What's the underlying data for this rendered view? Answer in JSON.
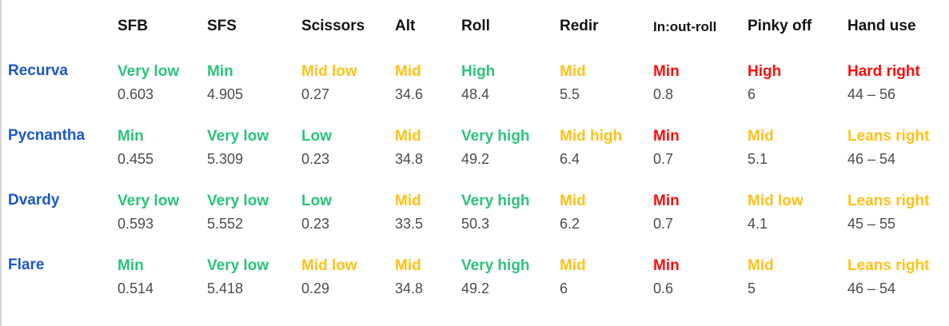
{
  "page": {
    "background": "#ffffff",
    "left_border_color": "#d5d5d5"
  },
  "table": {
    "corner_label": "",
    "columns": [
      {
        "key": "sfb",
        "label": "SFB"
      },
      {
        "key": "sfs",
        "label": "SFS"
      },
      {
        "key": "scissors",
        "label": "Scissors"
      },
      {
        "key": "alt",
        "label": "Alt"
      },
      {
        "key": "roll",
        "label": "Roll"
      },
      {
        "key": "redir",
        "label": "Redir"
      },
      {
        "key": "in-out-roll",
        "label": "In:out-roll"
      },
      {
        "key": "pinky-off",
        "label": "Pinky off"
      },
      {
        "key": "hand-use",
        "label": "Hand use"
      }
    ],
    "rows": [
      {
        "key": "recurva",
        "name": "Recurva",
        "cells": [
          {
            "rating": "Very low",
            "color": "green",
            "value": "0.603"
          },
          {
            "rating": "Min",
            "color": "green",
            "value": "4.905"
          },
          {
            "rating": "Mid low",
            "color": "yellow",
            "value": "0.27"
          },
          {
            "rating": "Mid",
            "color": "yellow",
            "value": "34.6"
          },
          {
            "rating": "High",
            "color": "green",
            "value": "48.4"
          },
          {
            "rating": "Mid",
            "color": "yellow",
            "value": "5.5"
          },
          {
            "rating": "Min",
            "color": "red",
            "value": "0.8"
          },
          {
            "rating": "High",
            "color": "red",
            "value": "6"
          },
          {
            "rating": "Hard right",
            "color": "red",
            "value": "44 – 56"
          }
        ]
      },
      {
        "key": "pycnantha",
        "name": "Pycnantha",
        "cells": [
          {
            "rating": "Min",
            "color": "green",
            "value": "0.455"
          },
          {
            "rating": "Very low",
            "color": "green",
            "value": "5.309"
          },
          {
            "rating": "Low",
            "color": "green",
            "value": "0.23"
          },
          {
            "rating": "Mid",
            "color": "yellow",
            "value": "34.8"
          },
          {
            "rating": "Very high",
            "color": "green",
            "value": "49.2"
          },
          {
            "rating": "Mid high",
            "color": "yellow",
            "value": "6.4"
          },
          {
            "rating": "Min",
            "color": "red",
            "value": "0.7"
          },
          {
            "rating": "Mid",
            "color": "yellow",
            "value": "5.1"
          },
          {
            "rating": "Leans right",
            "color": "yellow",
            "value": "46 – 54"
          }
        ]
      },
      {
        "key": "dvardy",
        "name": "Dvardy",
        "cells": [
          {
            "rating": "Very low",
            "color": "green",
            "value": "0.593"
          },
          {
            "rating": "Very low",
            "color": "green",
            "value": "5.552"
          },
          {
            "rating": "Low",
            "color": "green",
            "value": "0.23"
          },
          {
            "rating": "Mid",
            "color": "yellow",
            "value": "33.5"
          },
          {
            "rating": "Very high",
            "color": "green",
            "value": "50.3"
          },
          {
            "rating": "Mid",
            "color": "yellow",
            "value": "6.2"
          },
          {
            "rating": "Min",
            "color": "red",
            "value": "0.7"
          },
          {
            "rating": "Mid low",
            "color": "yellow",
            "value": "4.1"
          },
          {
            "rating": "Leans right",
            "color": "yellow",
            "value": "45 – 55"
          }
        ]
      },
      {
        "key": "flare",
        "name": "Flare",
        "cells": [
          {
            "rating": "Min",
            "color": "green",
            "value": "0.514"
          },
          {
            "rating": "Very low",
            "color": "green",
            "value": "5.418"
          },
          {
            "rating": "Mid low",
            "color": "yellow",
            "value": "0.29"
          },
          {
            "rating": "Mid",
            "color": "yellow",
            "value": "34.8"
          },
          {
            "rating": "Very high",
            "color": "green",
            "value": "49.2"
          },
          {
            "rating": "Mid",
            "color": "yellow",
            "value": "6"
          },
          {
            "rating": "Min",
            "color": "red",
            "value": "0.6"
          },
          {
            "rating": "Mid",
            "color": "yellow",
            "value": "5"
          },
          {
            "rating": "Leans right",
            "color": "yellow",
            "value": "46 – 54"
          }
        ]
      }
    ],
    "colors": {
      "green": "#2bc47a",
      "yellow": "#ffc117",
      "red": "#fe0d0d",
      "row_label_blue": "#1b57c9",
      "value_gray": "#4c4c4c",
      "header_black": "#141414"
    }
  }
}
